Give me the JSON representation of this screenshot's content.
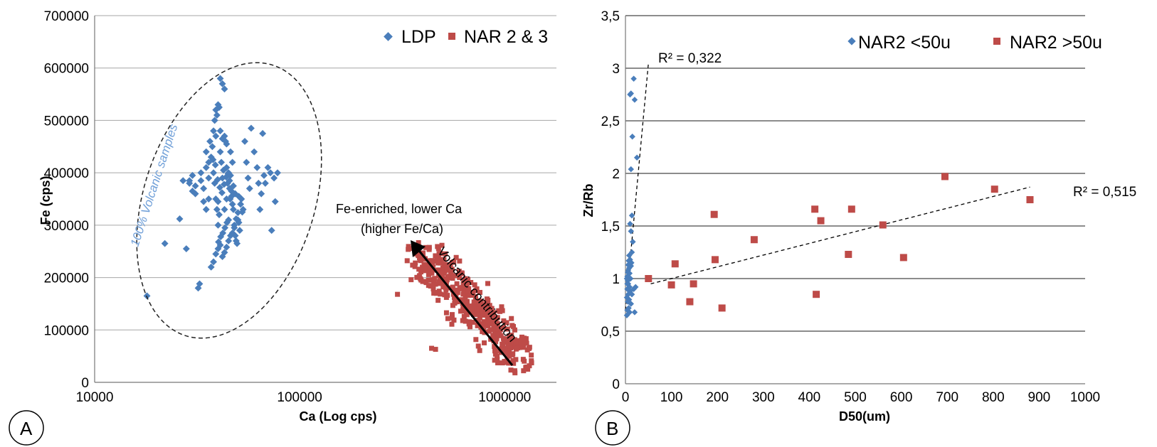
{
  "colors": {
    "blue": "#4a7ebb",
    "red": "#be4b48",
    "grid": "#a6a6a6",
    "gridB": "#8c8c8c"
  },
  "panels": {
    "a_letter": "A",
    "b_letter": "B"
  },
  "annotations": {
    "volcanic_samples": "100% Volcanic samples",
    "fe_enriched_line1": "Fe-enriched, lower Ca",
    "fe_enriched_line2": "(higher Fe/Ca)",
    "volcanic_contribution": "Volcanic contribution",
    "r2_left": "R² = 0,322",
    "r2_right": "R² = 0,515"
  },
  "chart_data": [
    {
      "type": "scatter",
      "xlabel": "Ca (Log cps)",
      "ylabel": "Fe (cps)",
      "xscale": "log",
      "xlim": [
        10000,
        1500000
      ],
      "ylim": [
        0,
        700000
      ],
      "xticks": [
        10000,
        100000,
        1000000
      ],
      "xtick_labels": [
        "10000",
        "100000",
        "1000000"
      ],
      "yticks": [
        0,
        100000,
        200000,
        300000,
        400000,
        500000,
        600000,
        700000
      ],
      "ytick_labels": [
        "0",
        "100000",
        "200000",
        "300000",
        "400000",
        "500000",
        "600000",
        "700000"
      ],
      "grid": "horizontal",
      "legend_position": "top-right",
      "series": [
        {
          "name": "LDP",
          "marker": "diamond",
          "color": "#4a7ebb",
          "points": [
            [
              18000,
              165000
            ],
            [
              22000,
              265000
            ],
            [
              26000,
              312000
            ],
            [
              27000,
              385000
            ],
            [
              28000,
              255000
            ],
            [
              29000,
              380000
            ],
            [
              30000,
              395000
            ],
            [
              31000,
              360000
            ],
            [
              32000,
              180000
            ],
            [
              32500,
              188000
            ],
            [
              33000,
              400000
            ],
            [
              34000,
              370000
            ],
            [
              35000,
              410000
            ],
            [
              36000,
              390000
            ],
            [
              36500,
              460000
            ],
            [
              37000,
              430000
            ],
            [
              37500,
              450000
            ],
            [
              38000,
              480000
            ],
            [
              38500,
              500000
            ],
            [
              39000,
              520000
            ],
            [
              39500,
              510000
            ],
            [
              40000,
              530000
            ],
            [
              40500,
              525000
            ],
            [
              41000,
              580000
            ],
            [
              42000,
              570000
            ],
            [
              43000,
              560000
            ],
            [
              38000,
              400000
            ],
            [
              38500,
              380000
            ],
            [
              39000,
              350000
            ],
            [
              39500,
              330000
            ],
            [
              40000,
              300000
            ],
            [
              40500,
              320000
            ],
            [
              41000,
              440000
            ],
            [
              41500,
              420000
            ],
            [
              42000,
              390000
            ],
            [
              42500,
              405000
            ],
            [
              43000,
              470000
            ],
            [
              43500,
              460000
            ],
            [
              44000,
              410000
            ],
            [
              44500,
              380000
            ],
            [
              45000,
              400000
            ],
            [
              45500,
              370000
            ],
            [
              46000,
              395000
            ],
            [
              46500,
              355000
            ],
            [
              47000,
              340000
            ],
            [
              47500,
              330000
            ],
            [
              48000,
              300000
            ],
            [
              48500,
              280000
            ],
            [
              49000,
              270000
            ],
            [
              49500,
              265000
            ],
            [
              50000,
              310000
            ],
            [
              50500,
              305000
            ],
            [
              51000,
              290000
            ],
            [
              52000,
              350000
            ],
            [
              53000,
              330000
            ],
            [
              54000,
              460000
            ],
            [
              55000,
              420000
            ],
            [
              56000,
              390000
            ],
            [
              57000,
              370000
            ],
            [
              58000,
              485000
            ],
            [
              60000,
              440000
            ],
            [
              62000,
              410000
            ],
            [
              63000,
              380000
            ],
            [
              64000,
              330000
            ],
            [
              65000,
              360000
            ],
            [
              66000,
              475000
            ],
            [
              67000,
              395000
            ],
            [
              68000,
              380000
            ],
            [
              70000,
              410000
            ],
            [
              72000,
              400000
            ],
            [
              73000,
              290000
            ],
            [
              75000,
              390000
            ],
            [
              76000,
              345000
            ],
            [
              78000,
              400000
            ],
            [
              37000,
              220000
            ],
            [
              38000,
              230000
            ],
            [
              39000,
              245000
            ],
            [
              40000,
              255000
            ],
            [
              41000,
              262000
            ],
            [
              42000,
              240000
            ],
            [
              43000,
              248000
            ],
            [
              44000,
              258000
            ],
            [
              45000,
              270000
            ],
            [
              46000,
              280000
            ],
            [
              47000,
              285000
            ],
            [
              48000,
              295000
            ],
            [
              49000,
              312000
            ],
            [
              50000,
              324000
            ],
            [
              40000,
              345000
            ],
            [
              36000,
              350000
            ],
            [
              34000,
              345000
            ],
            [
              35000,
              330000
            ],
            [
              44000,
              350000
            ],
            [
              43000,
              330000
            ],
            [
              45000,
              310000
            ],
            [
              47000,
              420000
            ],
            [
              46000,
              440000
            ],
            [
              44000,
              455000
            ],
            [
              42000,
              465000
            ],
            [
              41000,
              480000
            ],
            [
              39000,
              470000
            ],
            [
              36000,
              420000
            ],
            [
              35000,
              440000
            ],
            [
              33000,
              385000
            ],
            [
              31000,
              375000
            ],
            [
              30000,
              365000
            ],
            [
              29000,
              385000
            ],
            [
              45500,
              385000
            ],
            [
              44800,
              398000
            ],
            [
              43800,
              392000
            ],
            [
              42800,
              378000
            ],
            [
              41800,
              362000
            ],
            [
              40800,
              372000
            ],
            [
              39800,
              387000
            ],
            [
              38800,
              415000
            ],
            [
              37800,
              425000
            ],
            [
              50500,
              355000
            ],
            [
              51500,
              340000
            ],
            [
              52500,
              325000
            ],
            [
              48500,
              360000
            ],
            [
              47500,
              375000
            ],
            [
              46500,
              365000
            ],
            [
              45800,
              350000
            ],
            [
              44200,
              305000
            ],
            [
              43200,
              295000
            ],
            [
              42200,
              285000
            ],
            [
              41200,
              278000
            ],
            [
              40200,
              268000
            ]
          ]
        },
        {
          "name": "NAR 2 & 3",
          "marker": "square",
          "color": "#be4b48",
          "points": "generated-cloud"
        }
      ]
    },
    {
      "type": "scatter",
      "xlabel": "D50(um)",
      "ylabel": "Zr/Rb",
      "xlim": [
        0,
        1000
      ],
      "ylim": [
        0,
        3.5
      ],
      "xticks": [
        0,
        100,
        200,
        300,
        400,
        500,
        600,
        700,
        800,
        900,
        1000
      ],
      "xtick_labels": [
        "0",
        "100",
        "200",
        "300",
        "400",
        "500",
        "600",
        "700",
        "800",
        "900",
        "1000"
      ],
      "yticks": [
        0,
        0.5,
        1,
        1.5,
        2,
        2.5,
        3,
        3.5
      ],
      "ytick_labels": [
        "0",
        "0,5",
        "1",
        "1,5",
        "2",
        "2,5",
        "3",
        "3,5"
      ],
      "grid": "horizontal",
      "legend_position": "top-center",
      "series": [
        {
          "name": "NAR2 <50u",
          "marker": "diamond",
          "color": "#4a7ebb",
          "points": [
            [
              10,
              2.75
            ],
            [
              12,
              2.76
            ],
            [
              18,
              2.9
            ],
            [
              20,
              2.7
            ],
            [
              15,
              2.35
            ],
            [
              25,
              2.15
            ],
            [
              12,
              2.04
            ],
            [
              14,
              1.6
            ],
            [
              10,
              1.52
            ],
            [
              12,
              1.45
            ],
            [
              16,
              1.35
            ],
            [
              14,
              1.25
            ],
            [
              8,
              1.22
            ],
            [
              10,
              1.18
            ],
            [
              12,
              1.12
            ],
            [
              8,
              1.1
            ],
            [
              6,
              1.08
            ],
            [
              9,
              1.05
            ],
            [
              4,
              1.02
            ],
            [
              7,
              1.0
            ],
            [
              5,
              0.98
            ],
            [
              6,
              0.95
            ],
            [
              9,
              0.92
            ],
            [
              4,
              0.9
            ],
            [
              10,
              0.88
            ],
            [
              6,
              0.85
            ],
            [
              3,
              0.82
            ],
            [
              8,
              0.8
            ],
            [
              5,
              0.78
            ],
            [
              12,
              0.76
            ],
            [
              7,
              0.72
            ],
            [
              4,
              0.7
            ],
            [
              9,
              0.68
            ],
            [
              3,
              0.65
            ],
            [
              20,
              0.68
            ],
            [
              18,
              0.9
            ],
            [
              22,
              0.92
            ],
            [
              14,
              0.85
            ],
            [
              11,
              1.0
            ],
            [
              13,
              1.15
            ],
            [
              6,
              1.13
            ],
            [
              5,
              1.06
            ],
            [
              7,
              1.17
            ],
            [
              3,
              1.0
            ],
            [
              4,
              0.95
            ]
          ]
        },
        {
          "name": "NAR2 >50u",
          "marker": "square",
          "color": "#be4b48",
          "points": [
            [
              50,
              1.0
            ],
            [
              100,
              0.94
            ],
            [
              108,
              1.14
            ],
            [
              140,
              0.78
            ],
            [
              148,
              0.95
            ],
            [
              193,
              1.61
            ],
            [
              195,
              1.18
            ],
            [
              210,
              0.72
            ],
            [
              280,
              1.37
            ],
            [
              412,
              1.66
            ],
            [
              415,
              0.85
            ],
            [
              425,
              1.55
            ],
            [
              485,
              1.23
            ],
            [
              492,
              1.66
            ],
            [
              560,
              1.51
            ],
            [
              605,
              1.2
            ],
            [
              695,
              1.97
            ],
            [
              803,
              1.85
            ],
            [
              880,
              1.75
            ]
          ]
        }
      ],
      "trendlines": [
        {
          "series": "NAR2 <50u",
          "from": [
            0,
            0.7
          ],
          "to": [
            50,
            3.05
          ]
        },
        {
          "series": "NAR2 >50u",
          "from": [
            55,
            0.95
          ],
          "to": [
            880,
            1.87
          ]
        }
      ]
    }
  ]
}
